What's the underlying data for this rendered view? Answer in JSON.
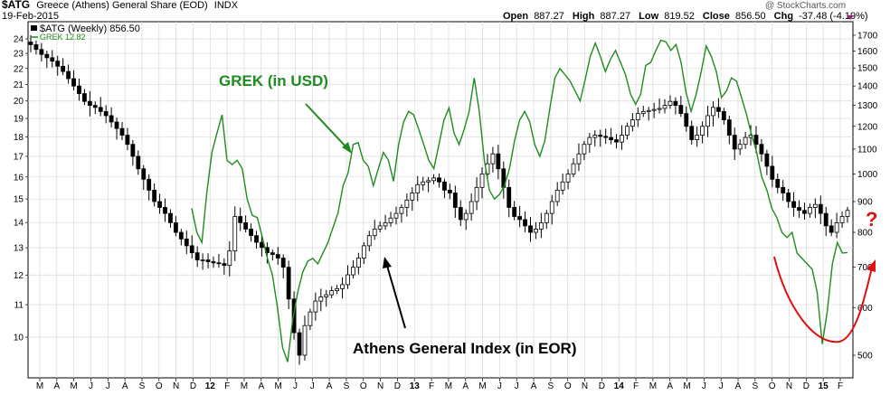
{
  "header": {
    "symbol": "$ATG",
    "name": "Greece (Athens) General Share (EOD)",
    "exchange": "INDX",
    "date": "19-Feb-2015",
    "open_label": "Open",
    "open_value": "887.27",
    "high_label": "High",
    "high_value": "887.27",
    "low_label": "Low",
    "low_value": "819.52",
    "close_label": "Close",
    "close_value": "856.50",
    "chg_label": "Chg",
    "chg_value": "-37.48 (-4.19%)",
    "watermark": "@ StockCharts.com"
  },
  "legend": {
    "atg": "$ATG (Weekly) 856.50",
    "grek": "GREK 12.82"
  },
  "annotations": {
    "grek": "GREK (in USD)",
    "athens": "Athens General Index (in EOR)",
    "question": "?"
  },
  "colors": {
    "grek": "#1e8c1e",
    "atg": "#000000",
    "red": "#e01010",
    "grid": "#d8d8d8",
    "q": "#e01010"
  },
  "chart_data": {
    "type": "line",
    "x_ticks": [
      "M",
      "A",
      "M",
      "J",
      "J",
      "A",
      "S",
      "O",
      "N",
      "D",
      "12",
      "F",
      "M",
      "A",
      "M",
      "J",
      "J",
      "A",
      "S",
      "O",
      "N",
      "D",
      "13",
      "F",
      "M",
      "A",
      "M",
      "J",
      "J",
      "A",
      "S",
      "O",
      "N",
      "D",
      "14",
      "F",
      "M",
      "A",
      "M",
      "J",
      "J",
      "A",
      "S",
      "O",
      "N",
      "D",
      "15",
      "F"
    ],
    "left_axis_ticks": [
      "24",
      "23",
      "22",
      "21",
      "20",
      "19",
      "18",
      "17",
      "16",
      "15",
      "14",
      "13",
      "12",
      "11",
      "10"
    ],
    "right_axis_ticks": [
      "1700",
      "1600",
      "1500",
      "1400",
      "1300",
      "1200",
      "1100",
      "1000",
      "900",
      "800",
      "700",
      "600",
      "500"
    ],
    "series": [
      {
        "name": "$ATG (Weekly)",
        "axis": "right",
        "style": "candles",
        "values": [
          1640,
          1610,
          1580,
          1560,
          1540,
          1510,
          1480,
          1440,
          1400,
          1360,
          1320,
          1300,
          1290,
          1270,
          1250,
          1220,
          1190,
          1160,
          1120,
          1070,
          1020,
          980,
          940,
          900,
          880,
          860,
          830,
          800,
          780,
          760,
          740,
          720,
          720,
          715,
          712,
          710,
          705,
          745,
          850,
          830,
          810,
          790,
          770,
          755,
          740,
          735,
          725,
          700,
          620,
          545,
          500,
          560,
          590,
          615,
          625,
          630,
          640,
          645,
          655,
          680,
          700,
          725,
          760,
          790,
          810,
          820,
          830,
          845,
          860,
          880,
          905,
          930,
          960,
          970,
          975,
          985,
          970,
          940,
          930,
          880,
          840,
          860,
          900,
          950,
          1000,
          1040,
          1080,
          1020,
          950,
          880,
          850,
          840,
          820,
          800,
          810,
          830,
          860,
          900,
          940,
          970,
          1000,
          1040,
          1080,
          1120,
          1150,
          1160,
          1155,
          1150,
          1140,
          1130,
          1160,
          1200,
          1230,
          1260,
          1270,
          1275,
          1280,
          1285,
          1300,
          1320,
          1300,
          1260,
          1200,
          1140,
          1160,
          1200,
          1250,
          1290,
          1270,
          1230,
          1160,
          1100,
          1120,
          1150,
          1160,
          1120,
          1080,
          1030,
          980,
          950,
          930,
          900,
          880,
          870,
          860,
          880,
          890,
          860,
          820,
          800,
          830,
          850,
          870
        ]
      },
      {
        "name": "GREK",
        "axis": "left",
        "style": "line",
        "values": [
          14.6,
          13.6,
          13.2,
          15.3,
          17.2,
          18.2,
          19.2,
          16.8,
          16.6,
          16.8,
          16.4,
          15.0,
          14.3,
          14.2,
          13.4,
          12.6,
          12.0,
          10.9,
          9.7,
          9.3,
          10.5,
          11.4,
          12.1,
          12.5,
          12.6,
          12.4,
          12.8,
          13.2,
          13.8,
          14.4,
          15.6,
          16.2,
          17.6,
          17.7,
          16.8,
          16.5,
          15.6,
          16.4,
          17.2,
          16.8,
          15.8,
          17.6,
          18.8,
          19.4,
          19.2,
          18.4,
          17.6,
          16.8,
          16.4,
          17.6,
          18.9,
          19.6,
          18.2,
          17.6,
          18.4,
          19.4,
          21.4,
          19.4,
          16.8,
          15.4,
          15.0,
          15.2,
          15.6,
          16.4,
          17.8,
          18.9,
          19.4,
          18.8,
          17.6,
          17.0,
          17.8,
          19.6,
          21.4,
          22.0,
          21.6,
          21.2,
          20.6,
          20.0,
          21.3,
          22.8,
          23.7,
          22.8,
          21.8,
          22.6,
          23.2,
          22.4,
          21.6,
          20.4,
          19.8,
          20.4,
          22.2,
          22.4,
          23.2,
          23.9,
          23.8,
          23.2,
          23.6,
          22.4,
          20.5,
          19.4,
          20.4,
          21.8,
          23.5,
          22.8,
          21.8,
          20.2,
          20.6,
          21.4,
          21.2,
          20.2,
          19.2,
          18.1,
          17.2,
          16.0,
          15.4,
          14.6,
          14.2,
          13.6,
          13.4,
          13.6,
          12.8,
          12.6,
          12.4,
          12.2,
          11.4,
          9.8,
          10.8,
          12.4,
          13.2,
          12.8,
          12.82
        ]
      }
    ]
  }
}
